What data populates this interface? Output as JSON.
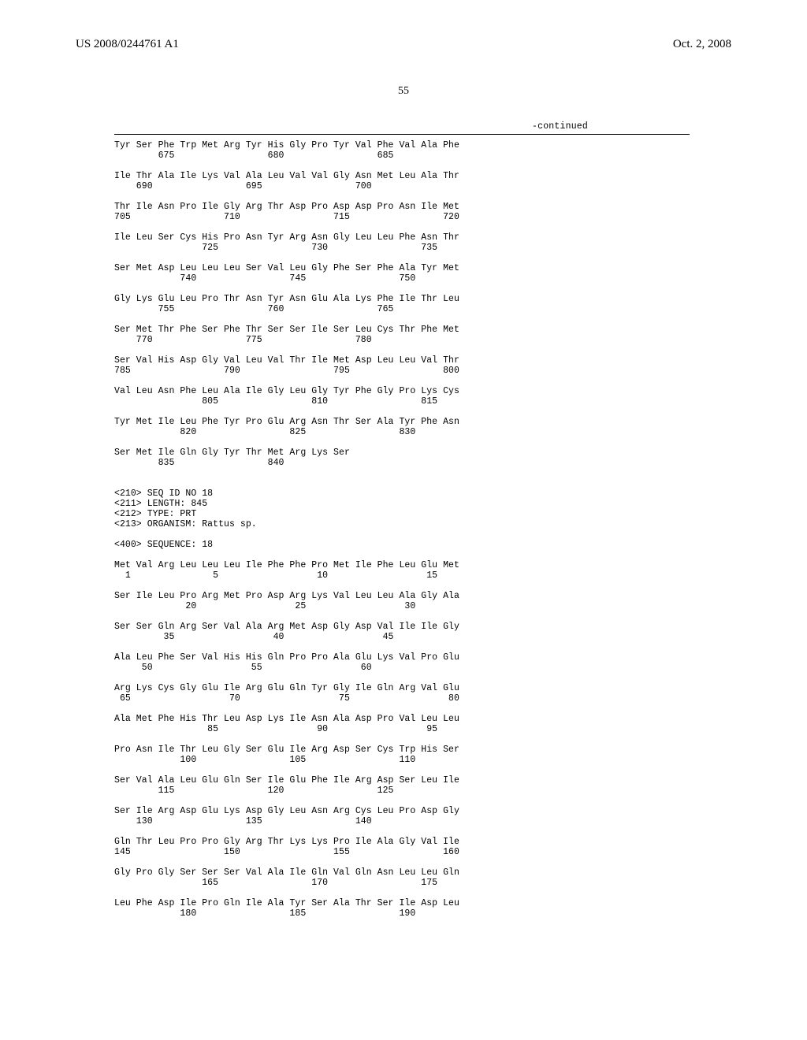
{
  "header": {
    "pub_number": "US 2008/0244761 A1",
    "pub_date": "Oct. 2, 2008"
  },
  "page": {
    "number": "55",
    "continued": "-continued"
  },
  "sequence_block": "Tyr Ser Phe Trp Met Arg Tyr His Gly Pro Tyr Val Phe Val Ala Phe\n        675                 680                 685\n\nIle Thr Ala Ile Lys Val Ala Leu Val Val Gly Asn Met Leu Ala Thr\n    690                 695                 700\n\nThr Ile Asn Pro Ile Gly Arg Thr Asp Pro Asp Asp Pro Asn Ile Met\n705                 710                 715                 720\n\nIle Leu Ser Cys His Pro Asn Tyr Arg Asn Gly Leu Leu Phe Asn Thr\n                725                 730                 735\n\nSer Met Asp Leu Leu Leu Ser Val Leu Gly Phe Ser Phe Ala Tyr Met\n            740                 745                 750\n\nGly Lys Glu Leu Pro Thr Asn Tyr Asn Glu Ala Lys Phe Ile Thr Leu\n        755                 760                 765\n\nSer Met Thr Phe Ser Phe Thr Ser Ser Ile Ser Leu Cys Thr Phe Met\n    770                 775                 780\n\nSer Val His Asp Gly Val Leu Val Thr Ile Met Asp Leu Leu Val Thr\n785                 790                 795                 800\n\nVal Leu Asn Phe Leu Ala Ile Gly Leu Gly Tyr Phe Gly Pro Lys Cys\n                805                 810                 815\n\nTyr Met Ile Leu Phe Tyr Pro Glu Arg Asn Thr Ser Ala Tyr Phe Asn\n            820                 825                 830\n\nSer Met Ile Gln Gly Tyr Thr Met Arg Lys Ser\n        835                 840\n\n\n<210> SEQ ID NO 18\n<211> LENGTH: 845\n<212> TYPE: PRT\n<213> ORGANISM: Rattus sp.\n\n<400> SEQUENCE: 18\n\nMet Val Arg Leu Leu Leu Ile Phe Phe Pro Met Ile Phe Leu Glu Met\n  1               5                  10                  15\n\nSer Ile Leu Pro Arg Met Pro Asp Arg Lys Val Leu Leu Ala Gly Ala\n             20                  25                  30\n\nSer Ser Gln Arg Ser Val Ala Arg Met Asp Gly Asp Val Ile Ile Gly\n         35                  40                  45\n\nAla Leu Phe Ser Val His His Gln Pro Pro Ala Glu Lys Val Pro Glu\n     50                  55                  60\n\nArg Lys Cys Gly Glu Ile Arg Glu Gln Tyr Gly Ile Gln Arg Val Glu\n 65                  70                  75                  80\n\nAla Met Phe His Thr Leu Asp Lys Ile Asn Ala Asp Pro Val Leu Leu\n                 85                  90                  95\n\nPro Asn Ile Thr Leu Gly Ser Glu Ile Arg Asp Ser Cys Trp His Ser\n            100                 105                 110\n\nSer Val Ala Leu Glu Gln Ser Ile Glu Phe Ile Arg Asp Ser Leu Ile\n        115                 120                 125\n\nSer Ile Arg Asp Glu Lys Asp Gly Leu Asn Arg Cys Leu Pro Asp Gly\n    130                 135                 140\n\nGln Thr Leu Pro Pro Gly Arg Thr Lys Lys Pro Ile Ala Gly Val Ile\n145                 150                 155                 160\n\nGly Pro Gly Ser Ser Ser Val Ala Ile Gln Val Gln Asn Leu Leu Gln\n                165                 170                 175\n\nLeu Phe Asp Ile Pro Gln Ile Ala Tyr Ser Ala Thr Ser Ile Asp Leu\n            180                 185                 190"
}
